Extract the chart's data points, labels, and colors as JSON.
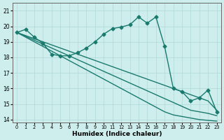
{
  "title": "",
  "xlabel": "Humidex (Indice chaleur)",
  "ylabel": "",
  "background_color": "#ceeeed",
  "grid_color": "#b0d8d8",
  "line_color": "#1a7a6e",
  "xlim": [
    -0.5,
    23.5
  ],
  "ylim": [
    13.8,
    21.5
  ],
  "yticks": [
    14,
    15,
    16,
    17,
    18,
    19,
    20,
    21
  ],
  "xticks": [
    0,
    1,
    2,
    3,
    4,
    5,
    6,
    7,
    8,
    9,
    10,
    11,
    12,
    13,
    14,
    15,
    16,
    17,
    18,
    19,
    20,
    21,
    22,
    23
  ],
  "lines": [
    {
      "x": [
        0,
        1,
        2,
        3,
        4,
        5,
        6,
        7,
        8,
        9,
        10,
        11,
        12,
        13,
        14,
        15,
        16,
        17,
        18,
        19,
        20,
        21,
        22,
        23
      ],
      "y": [
        19.6,
        19.8,
        19.3,
        18.9,
        18.2,
        18.1,
        18.1,
        18.3,
        18.6,
        19.0,
        19.5,
        19.85,
        19.95,
        20.1,
        20.6,
        20.2,
        20.6,
        18.7,
        16.0,
        15.8,
        15.2,
        15.4,
        15.9,
        14.5
      ],
      "marker": "D",
      "linewidth": 1.0,
      "markersize": 2.5
    },
    {
      "x": [
        0,
        1,
        2,
        3,
        4,
        5,
        6,
        7,
        8,
        9,
        10,
        11,
        12,
        13,
        14,
        15,
        16,
        17,
        18,
        19,
        20,
        21,
        22,
        23
      ],
      "y": [
        19.6,
        19.4,
        19.2,
        19.0,
        18.8,
        18.6,
        18.4,
        18.2,
        18.0,
        17.8,
        17.6,
        17.4,
        17.2,
        17.0,
        16.8,
        16.6,
        16.4,
        16.2,
        16.0,
        15.8,
        15.6,
        15.4,
        15.2,
        14.6
      ],
      "marker": null,
      "linewidth": 1.0,
      "markersize": 0
    },
    {
      "x": [
        0,
        1,
        2,
        3,
        4,
        5,
        6,
        7,
        8,
        9,
        10,
        11,
        12,
        13,
        14,
        15,
        16,
        17,
        18,
        19,
        20,
        21,
        22,
        23
      ],
      "y": [
        19.6,
        19.35,
        19.1,
        18.85,
        18.6,
        18.35,
        18.1,
        17.85,
        17.6,
        17.35,
        17.1,
        16.85,
        16.6,
        16.35,
        16.1,
        15.85,
        15.6,
        15.35,
        15.1,
        14.85,
        14.6,
        14.5,
        14.4,
        14.25
      ],
      "marker": null,
      "linewidth": 1.0,
      "markersize": 0
    },
    {
      "x": [
        0,
        1,
        2,
        3,
        4,
        5,
        6,
        7,
        8,
        9,
        10,
        11,
        12,
        13,
        14,
        15,
        16,
        17,
        18,
        19,
        20,
        21,
        22,
        23
      ],
      "y": [
        19.6,
        19.3,
        19.0,
        18.7,
        18.4,
        18.1,
        17.8,
        17.5,
        17.2,
        16.9,
        16.6,
        16.3,
        16.0,
        15.7,
        15.4,
        15.1,
        14.8,
        14.5,
        14.3,
        14.2,
        14.1,
        14.0,
        13.95,
        13.9
      ],
      "marker": null,
      "linewidth": 1.0,
      "markersize": 0
    }
  ]
}
